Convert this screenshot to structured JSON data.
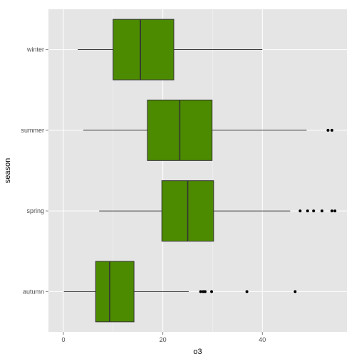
{
  "chart_data": {
    "type": "boxplot",
    "orientation": "horizontal",
    "xlabel": "o3",
    "ylabel": "season",
    "xlim": [
      -3,
      57
    ],
    "xticks": [
      0,
      20,
      40
    ],
    "grid": true,
    "legend": "none",
    "categories": [
      "autumn",
      "spring",
      "summer",
      "winter"
    ],
    "boxes": [
      {
        "category": "autumn",
        "whisker_low": 0.1,
        "q1": 6.5,
        "median": 9.3,
        "q3": 14.2,
        "whisker_high": 25.2,
        "outliers": [
          27.6,
          28.1,
          28.5,
          29.8,
          36.9,
          46.6
        ]
      },
      {
        "category": "spring",
        "whisker_low": 7.2,
        "q1": 19.8,
        "median": 25.0,
        "q3": 30.2,
        "whisker_high": 45.6,
        "outliers": [
          47.6,
          49.1,
          50.3,
          52.0,
          54.0,
          54.6
        ]
      },
      {
        "category": "summer",
        "whisker_low": 4.0,
        "q1": 16.9,
        "median": 23.4,
        "q3": 29.9,
        "whisker_high": 48.9,
        "outliers": [
          53.2,
          54.0
        ]
      },
      {
        "category": "winter",
        "whisker_low": 2.9,
        "q1": 10.0,
        "median": 15.5,
        "q3": 22.2,
        "whisker_high": 40.0,
        "outliers": []
      }
    ],
    "colors": {
      "panel": "#e5e5e5",
      "grid": "#ffffff",
      "box_fill": "#4c8a00",
      "box_stroke": "#333333",
      "outlier": "#000000"
    }
  }
}
